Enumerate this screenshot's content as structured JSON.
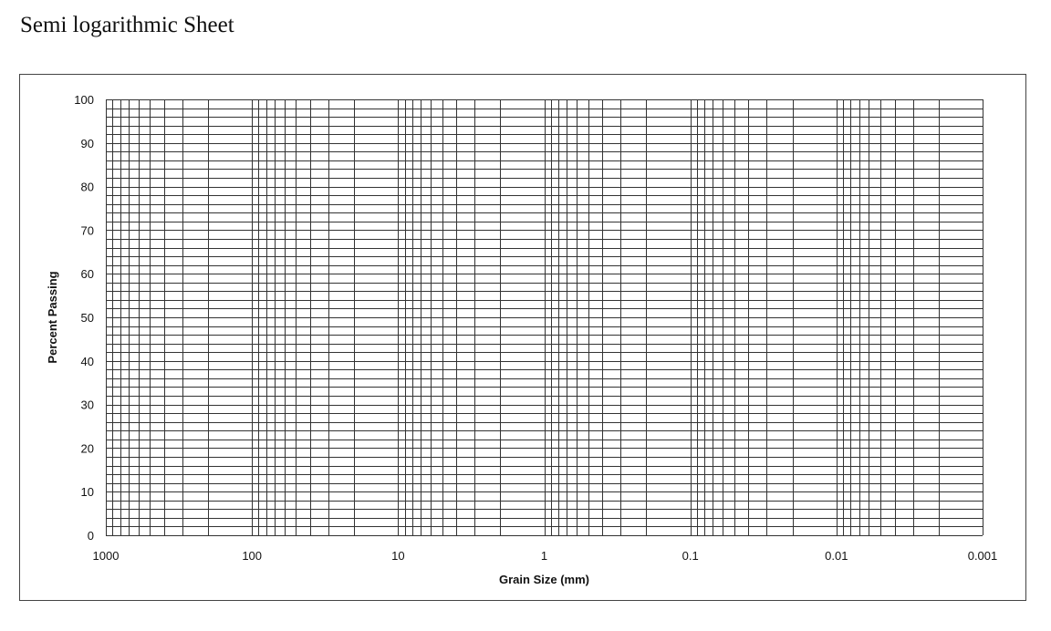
{
  "page": {
    "title": "Semi logarithmic Sheet"
  },
  "chart_data": {
    "type": "line",
    "title": "",
    "xlabel": "Grain Size (mm)",
    "ylabel": "Percent Passing",
    "x_scale": "log",
    "x_reversed": true,
    "xlim": [
      1000,
      0.001
    ],
    "ylim": [
      0,
      100
    ],
    "x_ticks": [
      1000,
      100,
      10,
      1,
      0.1,
      0.01,
      0.001
    ],
    "x_tick_labels": [
      "1000",
      "100",
      "10",
      "1",
      "0.1",
      "0.01",
      "0.001"
    ],
    "y_ticks": [
      0,
      10,
      20,
      30,
      40,
      50,
      60,
      70,
      80,
      90,
      100
    ],
    "y_tick_labels": [
      "0",
      "10",
      "20",
      "30",
      "40",
      "50",
      "60",
      "70",
      "80",
      "90",
      "100"
    ],
    "y_minor_step": 2,
    "grid": true,
    "series": [],
    "colors": {
      "grid": "#333333",
      "text": "#111111"
    }
  }
}
